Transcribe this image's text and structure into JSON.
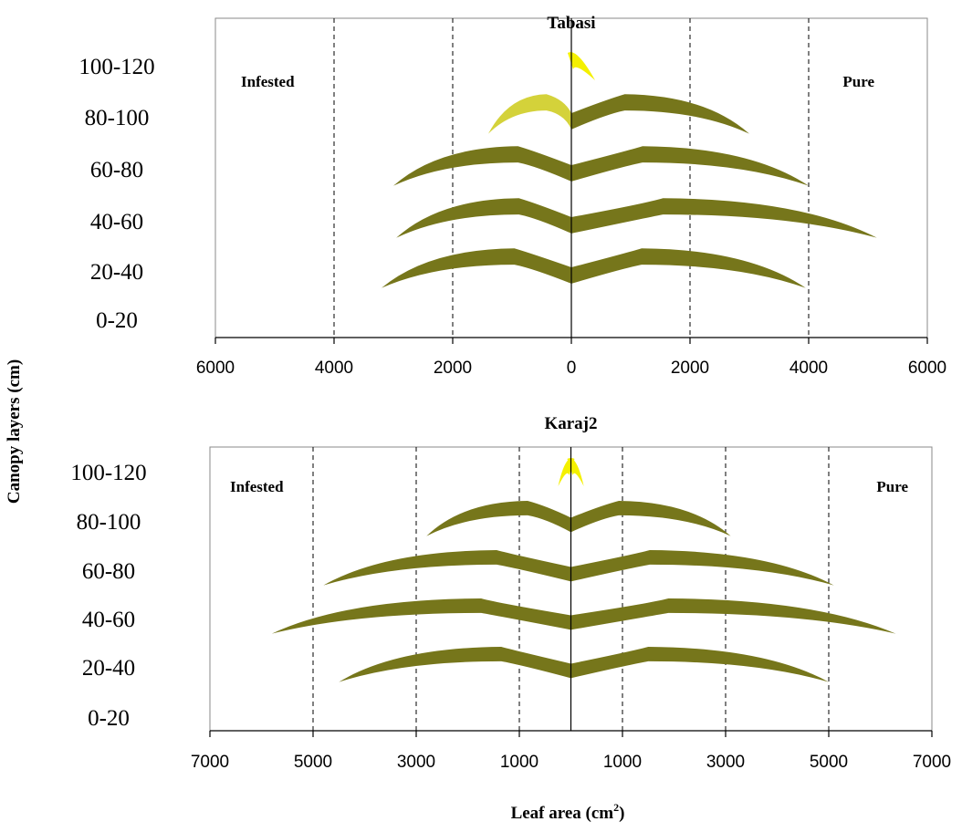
{
  "figure": {
    "y_axis_label": "Canopy layers (cm)",
    "x_axis_label": "Leaf area (cm",
    "x_axis_label_sup": "2",
    "x_axis_label_end": ")"
  },
  "chart_data": [
    {
      "type": "area",
      "title": "Tabasi",
      "left_label": "Infested",
      "right_label": "Pure",
      "layers": [
        "100-120",
        "80-100",
        "60-80",
        "40-60",
        "20-40",
        "0-20"
      ],
      "tick_labels": [
        "6000",
        "4000",
        "2000",
        "0",
        "2000",
        "4000",
        "6000"
      ],
      "xlim": [
        -6000,
        6000
      ],
      "series": [
        {
          "layer": "100-120",
          "infested": 0,
          "pure": 400,
          "color": "#f4f000"
        },
        {
          "layer": "80-100",
          "infested": 1400,
          "pure": 3000,
          "color_infested": "#d4d23a",
          "color": "#76761b"
        },
        {
          "layer": "60-80",
          "infested": 3000,
          "pure": 4000,
          "color": "#76761b"
        },
        {
          "layer": "40-60",
          "infested": 2950,
          "pure": 5150,
          "color": "#76761b"
        },
        {
          "layer": "20-40",
          "infested": 3200,
          "pure": 3950,
          "color": "#76761b"
        },
        {
          "layer": "0-20",
          "infested": 0,
          "pure": 0,
          "color": "#76761b"
        }
      ]
    },
    {
      "type": "area",
      "title": "Karaj2",
      "left_label": "Infested",
      "right_label": "Pure",
      "layers": [
        "100-120",
        "80-100",
        "60-80",
        "40-60",
        "20-40",
        "0-20"
      ],
      "tick_labels": [
        "7000",
        "5000",
        "3000",
        "1000",
        "1000",
        "3000",
        "5000",
        "7000"
      ],
      "xlim": [
        -7000,
        7000
      ],
      "series": [
        {
          "layer": "100-120",
          "infested": 250,
          "pure": 250,
          "color": "#f4f000"
        },
        {
          "layer": "80-100",
          "infested": 2800,
          "pure": 3100,
          "color": "#76761b"
        },
        {
          "layer": "60-80",
          "infested": 4800,
          "pure": 5100,
          "color": "#76761b"
        },
        {
          "layer": "40-60",
          "infested": 5800,
          "pure": 6300,
          "color": "#76761b"
        },
        {
          "layer": "20-40",
          "infested": 4500,
          "pure": 5000,
          "color": "#76761b"
        },
        {
          "layer": "0-20",
          "infested": 0,
          "pure": 0,
          "color": "#76761b"
        }
      ]
    }
  ]
}
